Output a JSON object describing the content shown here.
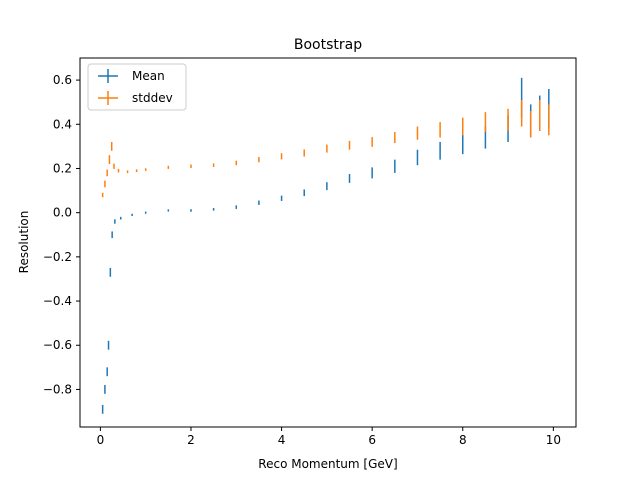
{
  "chart_data": {
    "type": "scatter",
    "title": "Bootstrap",
    "xlabel": "Reco Momentum [GeV]",
    "ylabel": "Resolution",
    "xlim": [
      -0.45,
      10.5
    ],
    "ylim": [
      -0.97,
      0.7
    ],
    "xticks": [
      0,
      2,
      4,
      6,
      8,
      10
    ],
    "yticks": [
      -0.8,
      -0.6,
      -0.4,
      -0.2,
      0.0,
      0.2,
      0.4,
      0.6
    ],
    "xtick_labels": [
      "0",
      "2",
      "4",
      "6",
      "8",
      "10"
    ],
    "ytick_labels": [
      "−0.8",
      "−0.6",
      "−0.4",
      "−0.2",
      "0.0",
      "0.2",
      "0.4",
      "0.6"
    ],
    "grid": false,
    "legend": {
      "position": "top-left",
      "entries": [
        "Mean",
        "stddev"
      ]
    },
    "colors": {
      "Mean": "#1f77b4",
      "stddev": "#ff7f0e"
    },
    "series": [
      {
        "name": "Mean",
        "color": "#1f77b4",
        "x": [
          0.05,
          0.1,
          0.15,
          0.18,
          0.22,
          0.26,
          0.32,
          0.45,
          0.7,
          1.0,
          1.5,
          2.0,
          2.5,
          3.0,
          3.5,
          4.0,
          4.5,
          5.0,
          5.5,
          6.0,
          6.5,
          7.0,
          7.5,
          8.0,
          8.5,
          9.0,
          9.3,
          9.5,
          9.7,
          9.9
        ],
        "y": [
          -0.89,
          -0.8,
          -0.72,
          -0.6,
          -0.27,
          -0.1,
          -0.04,
          -0.025,
          -0.01,
          0.0,
          0.01,
          0.01,
          0.015,
          0.025,
          0.045,
          0.065,
          0.09,
          0.12,
          0.155,
          0.18,
          0.21,
          0.25,
          0.28,
          0.31,
          0.34,
          0.38,
          0.52,
          0.42,
          0.45,
          0.47
        ],
        "yerr": [
          0.02,
          0.02,
          0.02,
          0.02,
          0.02,
          0.015,
          0.01,
          0.006,
          0.005,
          0.005,
          0.005,
          0.006,
          0.006,
          0.008,
          0.01,
          0.012,
          0.015,
          0.018,
          0.02,
          0.025,
          0.03,
          0.035,
          0.04,
          0.045,
          0.05,
          0.06,
          0.09,
          0.07,
          0.08,
          0.09
        ]
      },
      {
        "name": "stddev",
        "color": "#ff7f0e",
        "x": [
          0.05,
          0.1,
          0.15,
          0.2,
          0.25,
          0.3,
          0.4,
          0.6,
          0.8,
          1.0,
          1.5,
          2.0,
          2.5,
          3.0,
          3.5,
          4.0,
          4.5,
          5.0,
          5.5,
          6.0,
          6.5,
          7.0,
          7.5,
          8.0,
          8.5,
          9.0,
          9.3,
          9.5,
          9.7,
          9.9
        ],
        "y": [
          0.08,
          0.13,
          0.18,
          0.24,
          0.3,
          0.21,
          0.19,
          0.185,
          0.19,
          0.195,
          0.205,
          0.21,
          0.215,
          0.225,
          0.24,
          0.255,
          0.27,
          0.29,
          0.305,
          0.32,
          0.34,
          0.36,
          0.375,
          0.39,
          0.41,
          0.42,
          0.45,
          0.4,
          0.44,
          0.42
        ],
        "yerr": [
          0.01,
          0.015,
          0.015,
          0.02,
          0.02,
          0.012,
          0.008,
          0.006,
          0.006,
          0.006,
          0.007,
          0.008,
          0.008,
          0.01,
          0.012,
          0.014,
          0.016,
          0.018,
          0.02,
          0.022,
          0.025,
          0.03,
          0.035,
          0.04,
          0.045,
          0.05,
          0.06,
          0.06,
          0.07,
          0.07
        ]
      }
    ]
  }
}
